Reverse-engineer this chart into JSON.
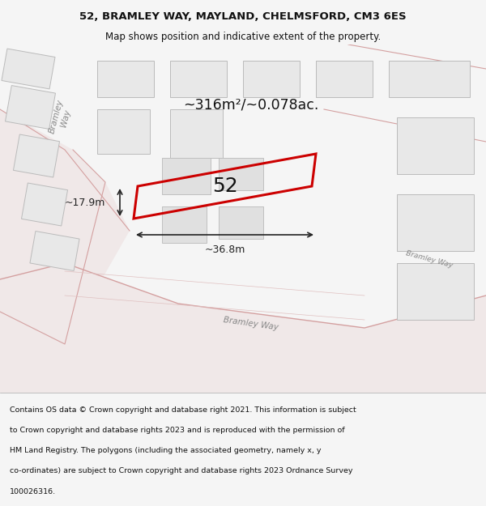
{
  "title_line1": "52, BRAMLEY WAY, MAYLAND, CHELMSFORD, CM3 6ES",
  "title_line2": "Map shows position and indicative extent of the property.",
  "area_text": "~316m²/~0.078ac.",
  "property_number": "52",
  "dim_width": "~36.8m",
  "dim_height": "~17.9m",
  "footer_text": "Contains OS data © Crown copyright and database right 2021. This information is subject to Crown copyright and database rights 2023 and is reproduced with the permission of HM Land Registry. The polygons (including the associated geometry, namely x, y co-ordinates) are subject to Crown copyright and database rights 2023 Ordnance Survey 100026316.",
  "bg_color": "#f5f5f5",
  "map_bg": "#ffffff",
  "road_color_light": "#f5c6c6",
  "road_color_mid": "#e8a0a0",
  "building_fill": "#e8e8e8",
  "building_stroke": "#cccccc",
  "property_stroke": "#cc0000",
  "property_fill": "none",
  "road_label_color": "#888888",
  "dim_color": "#222222",
  "title_color": "#111111",
  "footer_color": "#111111"
}
